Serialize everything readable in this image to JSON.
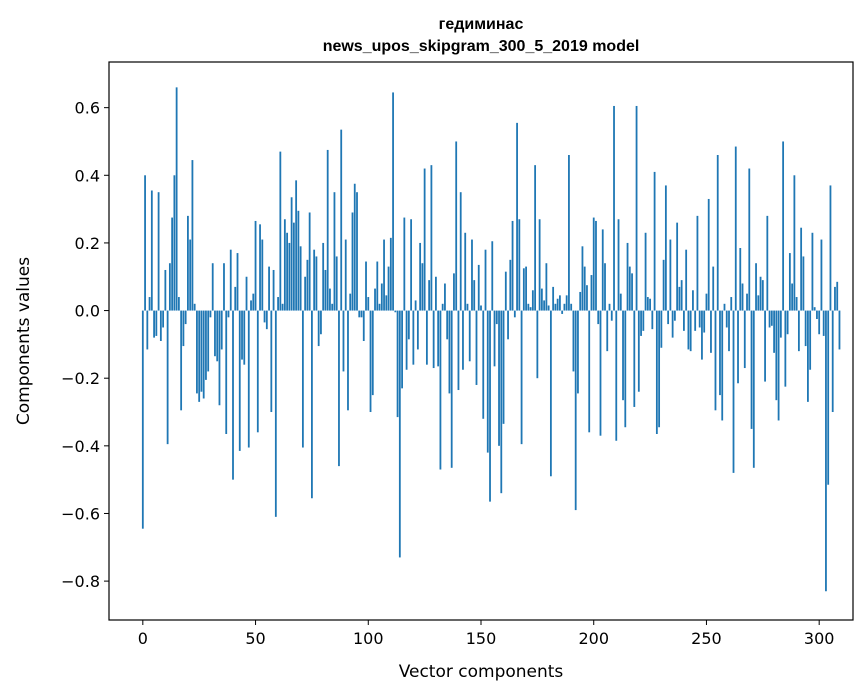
{
  "chart_data": {
    "type": "bar",
    "title": [
      "гедиминас",
      "news_upos_skipgram_300_5_2019 model"
    ],
    "xlabel": "Vector components",
    "ylabel": "Components values",
    "xlim": [
      -15,
      315
    ],
    "ylim": [
      -0.915,
      0.735
    ],
    "xticks": [
      0,
      50,
      100,
      150,
      200,
      250,
      300
    ],
    "xtick_labels": [
      "0",
      "50",
      "100",
      "150",
      "200",
      "250",
      "300"
    ],
    "yticks": [
      0.6,
      0.4,
      0.2,
      0.0,
      -0.2,
      -0.4,
      -0.6,
      -0.8
    ],
    "ytick_labels": [
      "0.6",
      "0.4",
      "0.2",
      "0.0",
      "−0.2",
      "−0.4",
      "−0.6",
      "−0.8"
    ],
    "bar_color": "#1f77b4",
    "grid": false,
    "series": [
      {
        "name": "components",
        "x_start": 0,
        "values": [
          -0.645,
          0.4,
          -0.115,
          0.04,
          0.355,
          -0.08,
          -0.075,
          0.35,
          -0.09,
          -0.05,
          0.12,
          -0.395,
          0.14,
          0.275,
          0.4,
          0.66,
          0.04,
          -0.295,
          -0.105,
          -0.04,
          0.28,
          0.21,
          0.445,
          0.02,
          -0.245,
          -0.27,
          -0.24,
          -0.26,
          -0.205,
          -0.18,
          -0.02,
          0.14,
          -0.135,
          -0.15,
          -0.28,
          -0.115,
          0.14,
          -0.365,
          -0.02,
          0.18,
          -0.5,
          0.07,
          0.17,
          -0.415,
          -0.145,
          -0.16,
          0.1,
          -0.405,
          0.03,
          0.05,
          0.265,
          -0.36,
          0.255,
          0.21,
          -0.035,
          -0.055,
          0.13,
          -0.3,
          0.12,
          -0.61,
          0.04,
          0.47,
          0.02,
          0.27,
          0.23,
          0.2,
          0.335,
          0.26,
          0.385,
          0.295,
          0.19,
          -0.405,
          0.1,
          0.15,
          0.29,
          -0.555,
          0.18,
          0.16,
          -0.105,
          -0.07,
          0.2,
          0.12,
          0.475,
          0.065,
          0.02,
          0.35,
          0.16,
          -0.46,
          0.535,
          -0.18,
          0.21,
          -0.295,
          0.05,
          0.29,
          0.375,
          0.35,
          -0.02,
          -0.02,
          -0.09,
          0.145,
          0.04,
          -0.3,
          -0.25,
          0.065,
          0.145,
          0.02,
          0.08,
          0.21,
          0.045,
          0.13,
          0.215,
          0.645,
          -0.005,
          -0.315,
          -0.73,
          -0.23,
          0.275,
          -0.175,
          -0.085,
          0.27,
          -0.16,
          0.03,
          -0.115,
          0.2,
          0.14,
          0.42,
          -0.16,
          0.09,
          0.43,
          -0.17,
          0.1,
          -0.165,
          -0.47,
          0.02,
          0.08,
          -0.085,
          -0.245,
          -0.465,
          0.11,
          0.5,
          -0.235,
          0.35,
          -0.175,
          0.23,
          0.02,
          -0.15,
          0.21,
          0.09,
          -0.22,
          0.135,
          0.015,
          -0.32,
          0.18,
          -0.42,
          -0.565,
          0.205,
          -0.165,
          -0.04,
          -0.4,
          -0.54,
          -0.335,
          0.115,
          -0.085,
          0.15,
          0.265,
          -0.02,
          0.555,
          0.27,
          -0.395,
          0.125,
          0.13,
          0.02,
          0.01,
          0.06,
          0.43,
          -0.2,
          0.27,
          0.065,
          0.03,
          0.14,
          0.015,
          -0.49,
          0.07,
          0.02,
          0.035,
          0.045,
          -0.01,
          0.02,
          0.045,
          0.46,
          0.02,
          -0.18,
          -0.59,
          -0.245,
          0.055,
          0.19,
          0.13,
          0.075,
          -0.36,
          0.105,
          0.275,
          0.265,
          -0.04,
          -0.37,
          0.24,
          0.14,
          -0.12,
          0.02,
          -0.03,
          0.605,
          -0.385,
          0.27,
          0.05,
          -0.265,
          -0.345,
          0.2,
          0.13,
          0.11,
          -0.285,
          0.605,
          -0.24,
          -0.075,
          -0.06,
          0.23,
          0.04,
          0.035,
          -0.055,
          0.41,
          -0.365,
          -0.345,
          -0.11,
          0.15,
          0.37,
          -0.04,
          0.21,
          -0.08,
          -0.03,
          0.26,
          0.07,
          0.09,
          -0.06,
          0.18,
          -0.115,
          -0.12,
          0.06,
          -0.06,
          0.28,
          -0.05,
          -0.145,
          -0.065,
          0.05,
          0.33,
          -0.125,
          0.13,
          -0.295,
          0.46,
          -0.25,
          -0.325,
          0.02,
          -0.05,
          -0.12,
          0.04,
          -0.48,
          0.485,
          -0.215,
          0.185,
          0.08,
          -0.17,
          0.05,
          0.42,
          -0.35,
          -0.465,
          0.14,
          0.045,
          0.1,
          0.09,
          -0.21,
          0.28,
          -0.05,
          -0.045,
          -0.125,
          -0.265,
          -0.325,
          -0.08,
          0.5,
          -0.225,
          -0.07,
          0.17,
          0.08,
          0.4,
          0.04,
          -0.12,
          0.245,
          0.16,
          -0.105,
          -0.27,
          -0.175,
          0.23,
          0.01,
          -0.025,
          -0.07,
          0.21,
          -0.075,
          -0.83,
          -0.515,
          0.37,
          -0.3,
          0.07,
          0.085,
          -0.115
        ]
      }
    ]
  }
}
